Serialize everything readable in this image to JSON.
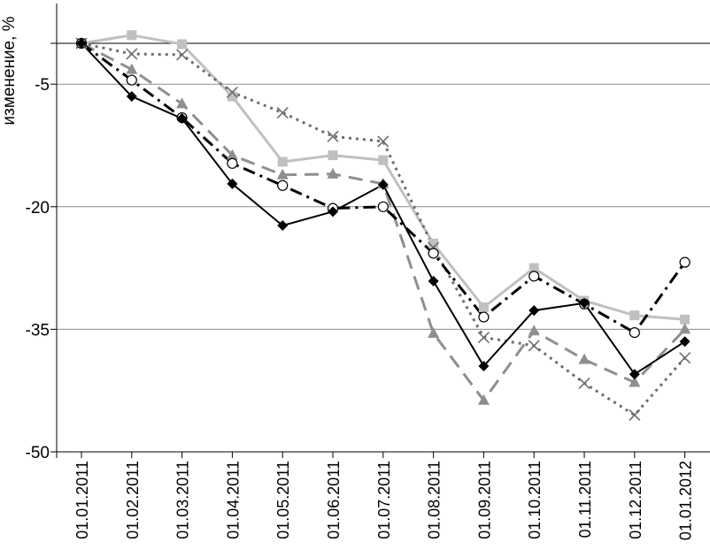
{
  "chart_data": {
    "type": "line",
    "ylabel": "изменение, %",
    "ylim": [
      -50,
      0
    ],
    "yticks": [
      -5,
      -20,
      -35,
      -50
    ],
    "categories": [
      "01.01.2011",
      "01.02.2011",
      "01.03.2011",
      "01.04.2011",
      "01.05.2011",
      "01.06.2011",
      "01.07.2011",
      "01.08.2011",
      "01.09.2011",
      "01.10.2011",
      "01.11.2011",
      "01.12.2011",
      "01.01.2012"
    ],
    "grid": true,
    "legend": "none",
    "series": [
      {
        "values": [
          0,
          1,
          -0.1,
          -6.5,
          -14.5,
          -13.7,
          -14.3,
          -24.5,
          -32.3,
          -27.5,
          -31.5,
          -33.3,
          -33.8
        ],
        "color": "#c0c0c0",
        "marker": "square",
        "dash": "solid",
        "width": 3
      },
      {
        "values": [
          0,
          -1.3,
          -1.4,
          -6,
          -8.5,
          -11.4,
          -12,
          -25,
          -36,
          -37,
          -41.6,
          -45.5,
          -38.5
        ],
        "color": "#6e6e6e",
        "marker": "x",
        "dash": "dot",
        "width": 3
      },
      {
        "values": [
          0,
          -3.2,
          -7.4,
          -13.7,
          -16.1,
          -16,
          -17.2,
          -35.5,
          -43.7,
          -35.2,
          -38.7,
          -41.5,
          -35
        ],
        "color": "#8f8f8f",
        "marker": "triangle",
        "dash": "longdash",
        "width": 3
      },
      {
        "values": [
          0,
          -4.5,
          -9.1,
          -14.7,
          -17.4,
          -20.2,
          -20,
          -25.7,
          -33.5,
          -28.5,
          -31.9,
          -35.4,
          -26.8
        ],
        "color": "#000000",
        "marker": "circle-open",
        "dash": "dashdot",
        "width": 3
      },
      {
        "values": [
          0,
          -6.5,
          -9.2,
          -17.2,
          -22.3,
          -20.6,
          -17.3,
          -29.1,
          -39.5,
          -32.7,
          -31.8,
          -40.5,
          -36.5
        ],
        "color": "#000000",
        "marker": "diamond",
        "dash": "solid",
        "width": 2
      }
    ]
  }
}
